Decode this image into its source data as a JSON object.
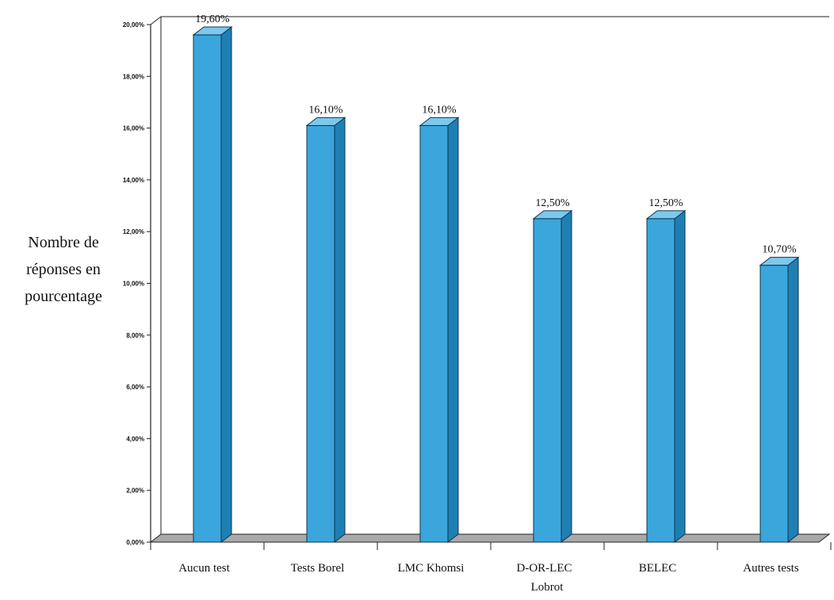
{
  "chart_data": {
    "type": "bar",
    "categories": [
      "Aucun test",
      "Tests Borel",
      "LMC Khomsi",
      "D-OR-LEC",
      "BELEC",
      "Autres tests"
    ],
    "extra_label": "Lobrot",
    "values": [
      19.6,
      16.1,
      16.1,
      12.5,
      12.5,
      10.7
    ],
    "value_labels": [
      "19,60%",
      "16,10%",
      "16,10%",
      "12,50%",
      "12,50%",
      "10,70%"
    ],
    "ylabel_lines": [
      "Nombre de",
      "réponses en",
      "pourcentage"
    ],
    "ylim": [
      0,
      20
    ],
    "y_ticks": [
      0,
      2,
      4,
      6,
      8,
      10,
      12,
      14,
      16,
      18,
      20
    ],
    "y_tick_labels": [
      "0,00%",
      "2,00%",
      "4,00%",
      "6,00%",
      "8,00%",
      "10,00%",
      "12,00%",
      "14,00%",
      "16,00%",
      "18,00%",
      "20,00%"
    ],
    "grid": false,
    "legend": "none",
    "colors": {
      "bar_front": "#3aa6dc",
      "bar_side": "#1f7fb3",
      "bar_top": "#7cc8ee",
      "floor": "#a9a9a9",
      "axis": "#222222"
    }
  }
}
